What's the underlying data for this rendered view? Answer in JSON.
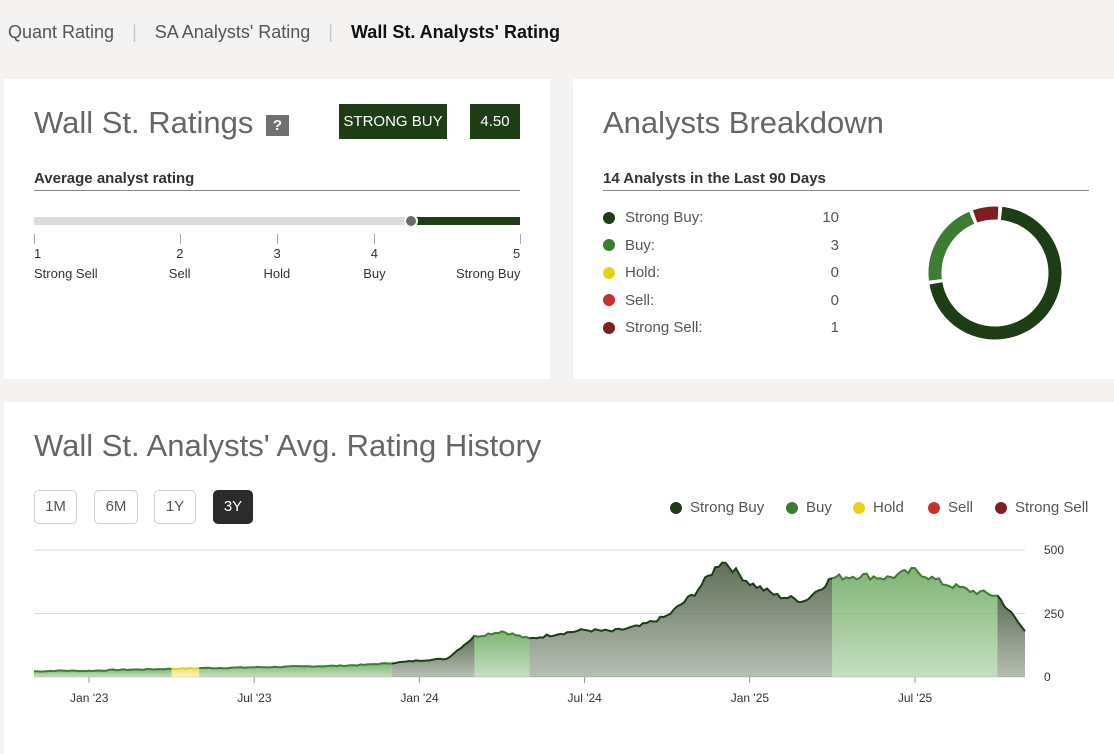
{
  "tabs": [
    {
      "label": "Quant Rating",
      "active": false
    },
    {
      "label": "SA Analysts' Rating",
      "active": false
    },
    {
      "label": "Wall St. Analysts' Rating",
      "active": true
    }
  ],
  "ratings": {
    "title": "Wall St. Ratings",
    "help": "?",
    "badge": "STRONG BUY",
    "score": "4.50",
    "subtitle": "Average analyst rating",
    "score_value": 4.5,
    "scale": [
      {
        "num": "1",
        "label": "Strong Sell"
      },
      {
        "num": "2",
        "label": "Sell"
      },
      {
        "num": "3",
        "label": "Hold"
      },
      {
        "num": "4",
        "label": "Buy"
      },
      {
        "num": "5",
        "label": "Strong Buy"
      }
    ]
  },
  "breakdown": {
    "title": "Analysts Breakdown",
    "subtitle": "14 Analysts in the Last 90 Days",
    "rows": [
      {
        "label": "Strong Buy:",
        "count": "10",
        "value": 10,
        "color": "#1e3d14"
      },
      {
        "label": "Buy:",
        "count": "3",
        "value": 3,
        "color": "#3b7d31"
      },
      {
        "label": "Hold:",
        "count": "0",
        "value": 0,
        "color": "#e6d21a"
      },
      {
        "label": "Sell:",
        "count": "0",
        "value": 0,
        "color": "#c8302e"
      },
      {
        "label": "Strong Sell:",
        "count": "1",
        "value": 1,
        "color": "#7d1f1f"
      }
    ]
  },
  "history": {
    "title": "Wall St. Analysts' Avg. Rating History",
    "ranges": [
      {
        "label": "1M",
        "active": false
      },
      {
        "label": "6M",
        "active": false
      },
      {
        "label": "1Y",
        "active": false
      },
      {
        "label": "3Y",
        "active": true
      }
    ],
    "legend": [
      {
        "label": "Strong Buy",
        "color": "#1e3d14"
      },
      {
        "label": "Buy",
        "color": "#3b7d31"
      },
      {
        "label": "Hold",
        "color": "#e6d21a"
      },
      {
        "label": "Sell",
        "color": "#c8302e"
      },
      {
        "label": "Strong Sell",
        "color": "#7d1f1f"
      }
    ]
  },
  "chart_data": {
    "type": "area",
    "title": "",
    "xlabel": "",
    "ylabel": "",
    "ylim": [
      0,
      500
    ],
    "y_ticks": [
      "500",
      "250",
      "0"
    ],
    "x_ticks": [
      "Jan '23",
      "Jul '23",
      "Jan '24",
      "Jul '24",
      "Jan '25",
      "Jul '25"
    ],
    "x": [
      "2022-11",
      "2022-12",
      "2023-01",
      "2023-02",
      "2023-03",
      "2023-04",
      "2023-05",
      "2023-06",
      "2023-07",
      "2023-08",
      "2023-09",
      "2023-10",
      "2023-11",
      "2023-12",
      "2024-01",
      "2024-02",
      "2024-03",
      "2024-04",
      "2024-05",
      "2024-06",
      "2024-07",
      "2024-08",
      "2024-09",
      "2024-10",
      "2024-11",
      "2024-12",
      "2025-01",
      "2025-02",
      "2025-03",
      "2025-04",
      "2025-05",
      "2025-06",
      "2025-07",
      "2025-08",
      "2025-09",
      "2025-10",
      "2025-11"
    ],
    "values": [
      22,
      25,
      24,
      28,
      30,
      32,
      35,
      36,
      38,
      40,
      42,
      44,
      48,
      55,
      65,
      72,
      160,
      180,
      150,
      170,
      185,
      180,
      200,
      240,
      330,
      460,
      370,
      320,
      300,
      390,
      400,
      390,
      420,
      370,
      340,
      320,
      180
    ],
    "rating_zones": [
      {
        "from": "2022-11",
        "to": "2023-04",
        "rating": "Buy"
      },
      {
        "from": "2023-04",
        "to": "2023-05",
        "rating": "Hold"
      },
      {
        "from": "2023-05",
        "to": "2023-12",
        "rating": "Buy"
      },
      {
        "from": "2023-12",
        "to": "2024-03",
        "rating": "Strong Buy"
      },
      {
        "from": "2024-03",
        "to": "2024-05",
        "rating": "Buy"
      },
      {
        "from": "2024-05",
        "to": "2025-04",
        "rating": "Strong Buy"
      },
      {
        "from": "2025-04",
        "to": "2025-10",
        "rating": "Buy"
      },
      {
        "from": "2025-10",
        "to": "2025-11",
        "rating": "Strong Buy"
      }
    ],
    "grid": true,
    "legend": "top-right"
  }
}
